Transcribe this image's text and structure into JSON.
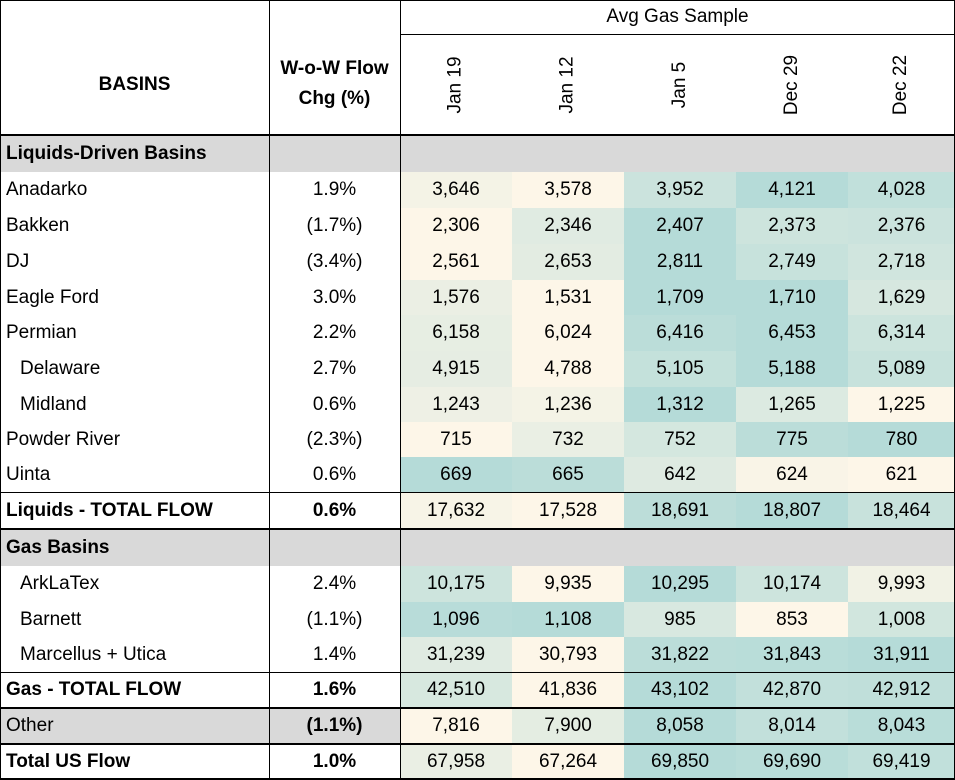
{
  "header": {
    "basins_label": "BASINS",
    "chg_label_line1": "W-o-W Flow",
    "chg_label_line2": "Chg (%)",
    "sample_label": "Avg Gas Sample",
    "dates": [
      "Jan 19",
      "Jan 12",
      "Jan 5",
      "Dec 29",
      "Dec 22"
    ]
  },
  "sections": [
    {
      "title": "Liquids-Driven Basins",
      "rows": [
        {
          "name": "Anadarko",
          "chg": "1.9%",
          "values": [
            "3,646",
            "3,578",
            "3,952",
            "4,121",
            "4,028"
          ]
        },
        {
          "name": "Bakken",
          "chg": "(1.7%)",
          "values": [
            "2,306",
            "2,346",
            "2,407",
            "2,373",
            "2,376"
          ]
        },
        {
          "name": "DJ",
          "chg": "(3.4%)",
          "values": [
            "2,561",
            "2,653",
            "2,811",
            "2,749",
            "2,718"
          ]
        },
        {
          "name": "Eagle Ford",
          "chg": "3.0%",
          "values": [
            "1,576",
            "1,531",
            "1,709",
            "1,710",
            "1,629"
          ]
        },
        {
          "name": "Permian",
          "chg": "2.2%",
          "values": [
            "6,158",
            "6,024",
            "6,416",
            "6,453",
            "6,314"
          ]
        },
        {
          "name": "Delaware",
          "chg": "2.7%",
          "values": [
            "4,915",
            "4,788",
            "5,105",
            "5,188",
            "5,089"
          ]
        },
        {
          "name": "Midland",
          "chg": "0.6%",
          "values": [
            "1,243",
            "1,236",
            "1,312",
            "1,265",
            "1,225"
          ]
        },
        {
          "name": "Powder River",
          "chg": "(2.3%)",
          "values": [
            "715",
            "732",
            "752",
            "775",
            "780"
          ]
        },
        {
          "name": "Uinta",
          "chg": "0.6%",
          "values": [
            "669",
            "665",
            "642",
            "624",
            "621"
          ]
        }
      ],
      "total": {
        "name": "Liquids - TOTAL FLOW",
        "chg": "0.6%",
        "values": [
          "17,632",
          "17,528",
          "18,691",
          "18,807",
          "18,464"
        ]
      }
    },
    {
      "title": "Gas Basins",
      "rows": [
        {
          "name": "ArkLaTex",
          "chg": "2.4%",
          "values": [
            "10,175",
            "9,935",
            "10,295",
            "10,174",
            "9,993"
          ]
        },
        {
          "name": "Barnett",
          "chg": "(1.1%)",
          "values": [
            "1,096",
            "1,108",
            "985",
            "853",
            "1,008"
          ]
        },
        {
          "name": "Marcellus + Utica",
          "chg": "1.4%",
          "values": [
            "31,239",
            "30,793",
            "31,822",
            "31,843",
            "31,911"
          ]
        }
      ],
      "total": {
        "name": "Gas - TOTAL FLOW",
        "chg": "1.6%",
        "values": [
          "42,510",
          "41,836",
          "43,102",
          "42,870",
          "42,912"
        ]
      }
    }
  ],
  "other": {
    "name": "Other",
    "chg": "(1.1%)",
    "values": [
      "7,816",
      "7,900",
      "8,058",
      "8,014",
      "8,043"
    ]
  },
  "grand_total": {
    "name": "Total US Flow",
    "chg": "1.0%",
    "values": [
      "67,958",
      "67,264",
      "69,850",
      "69,690",
      "69,419"
    ]
  },
  "colors": {
    "section_band": "#d9d9d9",
    "heat_low": "#fdf6e8",
    "heat_high": "#b5dbd8",
    "grid": "#000000"
  }
}
